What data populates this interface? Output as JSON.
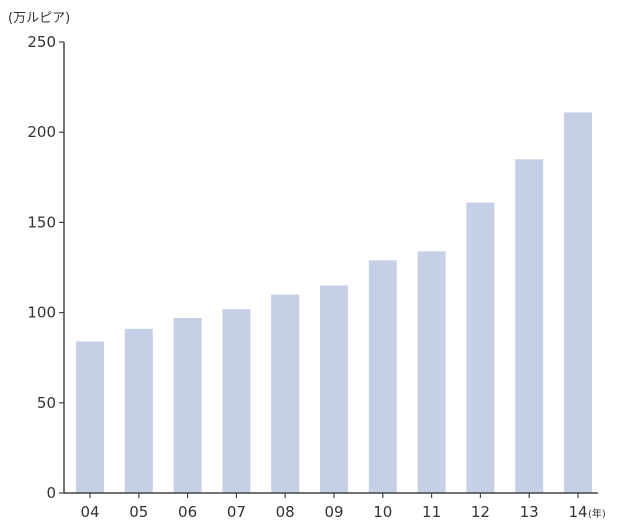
{
  "chart_data": {
    "type": "bar",
    "title": "",
    "ylabel": "(万ルピア)",
    "xlabel": "(年)",
    "categories": [
      "04",
      "05",
      "06",
      "07",
      "08",
      "09",
      "10",
      "11",
      "12",
      "13",
      "14"
    ],
    "values": [
      84,
      91,
      97,
      102,
      110,
      115,
      129,
      134,
      161,
      185,
      211
    ],
    "ylim": [
      0,
      250
    ],
    "yticks": [
      0,
      50,
      100,
      150,
      200,
      250
    ],
    "grid": false,
    "legend": "none",
    "colors": {
      "bar": "#c5cfe6",
      "axis": "#444444"
    }
  }
}
